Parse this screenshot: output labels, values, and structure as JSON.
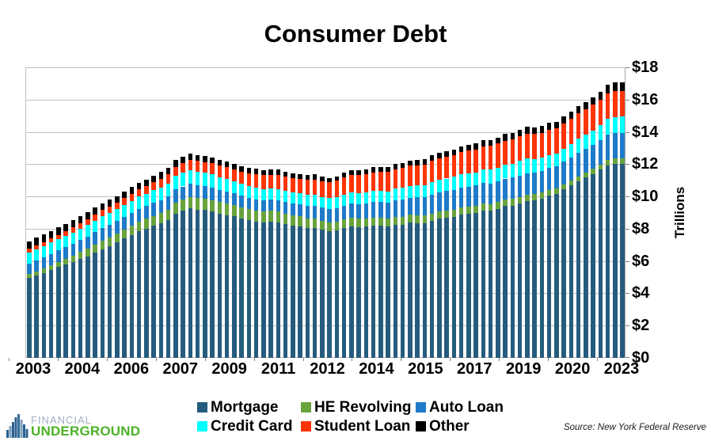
{
  "title": "Consumer Debt",
  "y_axis": {
    "title": "Trillions",
    "step": 2,
    "ticks": [
      "$0",
      "$2",
      "$4",
      "$6",
      "$8",
      "$10",
      "$12",
      "$14",
      "$16",
      "$18"
    ]
  },
  "x_axis": {
    "shown_tick_labels": [
      "2003",
      "2004",
      "2006",
      "2007",
      "2009",
      "2011",
      "2012",
      "2014",
      "2015",
      "2017",
      "2019",
      "2020",
      "2023"
    ]
  },
  "legend": {
    "labels": [
      "Mortgage",
      "HE Revolving",
      "Auto Loan",
      "Credit Card",
      "Student Loan",
      "Other"
    ]
  },
  "logo": {
    "line1": "FINANCIAL",
    "line2": "UNDERGROUND"
  },
  "source": "Source: New York Federal Reserve",
  "colors": {
    "mortgage": "#255c7e",
    "he_revolving": "#69a33c",
    "auto_loan": "#1e7bc9",
    "credit_card": "#00ffff",
    "student_loan": "#ff3505",
    "other": "#000000",
    "gridline": "#bfbfbf"
  },
  "chart_data": {
    "type": "bar",
    "stacked": true,
    "unit": "trillions USD",
    "ylim": [
      0,
      18
    ],
    "grid": true,
    "legend_position": "bottom",
    "categories": [
      "2003 Q1",
      "2003 Q2",
      "2003 Q3",
      "2003 Q4",
      "2004 Q1",
      "2004 Q2",
      "2004 Q3",
      "2004 Q4",
      "2005 Q1",
      "2005 Q2",
      "2005 Q3",
      "2005 Q4",
      "2006 Q1",
      "2006 Q2",
      "2006 Q3",
      "2006 Q4",
      "2007 Q1",
      "2007 Q2",
      "2007 Q3",
      "2007 Q4",
      "2008 Q1",
      "2008 Q2",
      "2008 Q3",
      "2008 Q4",
      "2009 Q1",
      "2009 Q2",
      "2009 Q3",
      "2009 Q4",
      "2010 Q1",
      "2010 Q2",
      "2010 Q3",
      "2010 Q4",
      "2011 Q1",
      "2011 Q2",
      "2011 Q3",
      "2011 Q4",
      "2012 Q1",
      "2012 Q2",
      "2012 Q3",
      "2012 Q4",
      "2013 Q1",
      "2013 Q2",
      "2013 Q3",
      "2013 Q4",
      "2014 Q1",
      "2014 Q2",
      "2014 Q3",
      "2014 Q4",
      "2015 Q1",
      "2015 Q2",
      "2015 Q3",
      "2015 Q4",
      "2016 Q1",
      "2016 Q2",
      "2016 Q3",
      "2016 Q4",
      "2017 Q1",
      "2017 Q2",
      "2017 Q3",
      "2017 Q4",
      "2018 Q1",
      "2018 Q2",
      "2018 Q3",
      "2018 Q4",
      "2019 Q1",
      "2019 Q2",
      "2019 Q3",
      "2019 Q4",
      "2020 Q1",
      "2020 Q2",
      "2020 Q3",
      "2020 Q4",
      "2021 Q1",
      "2021 Q2",
      "2021 Q3",
      "2021 Q4",
      "2022 Q1",
      "2022 Q2",
      "2022 Q3",
      "2022 Q4",
      "2023 Q1",
      "2023 Q2"
    ],
    "series": [
      {
        "name": "Mortgage",
        "color": "#255c7e",
        "values": [
          4.94,
          5.1,
          5.27,
          5.45,
          5.62,
          5.78,
          5.94,
          6.12,
          6.3,
          6.52,
          6.72,
          6.94,
          7.14,
          7.39,
          7.61,
          7.83,
          8.0,
          8.17,
          8.33,
          8.52,
          8.95,
          9.13,
          9.29,
          9.19,
          9.15,
          9.06,
          8.94,
          8.85,
          8.77,
          8.65,
          8.53,
          8.45,
          8.4,
          8.44,
          8.4,
          8.29,
          8.19,
          8.15,
          8.03,
          8.03,
          7.93,
          7.84,
          7.89,
          8.05,
          8.16,
          8.1,
          8.13,
          8.17,
          8.17,
          8.12,
          8.26,
          8.25,
          8.37,
          8.36,
          8.35,
          8.48,
          8.63,
          8.69,
          8.74,
          8.88,
          8.94,
          9.0,
          9.14,
          9.12,
          9.24,
          9.41,
          9.44,
          9.56,
          9.71,
          9.78,
          9.86,
          10.04,
          10.16,
          10.44,
          10.67,
          10.93,
          11.18,
          11.39,
          11.67,
          11.92,
          12.04,
          12.01
        ]
      },
      {
        "name": "HE Revolving",
        "color": "#69a33c",
        "values": [
          0.24,
          0.26,
          0.28,
          0.3,
          0.33,
          0.36,
          0.39,
          0.44,
          0.47,
          0.5,
          0.52,
          0.54,
          0.56,
          0.57,
          0.58,
          0.6,
          0.61,
          0.62,
          0.63,
          0.65,
          0.67,
          0.68,
          0.69,
          0.7,
          0.71,
          0.71,
          0.7,
          0.7,
          0.69,
          0.68,
          0.67,
          0.67,
          0.66,
          0.66,
          0.65,
          0.64,
          0.63,
          0.62,
          0.61,
          0.6,
          0.58,
          0.57,
          0.55,
          0.53,
          0.53,
          0.52,
          0.51,
          0.51,
          0.51,
          0.5,
          0.49,
          0.49,
          0.49,
          0.48,
          0.47,
          0.47,
          0.46,
          0.45,
          0.45,
          0.44,
          0.44,
          0.43,
          0.42,
          0.41,
          0.41,
          0.4,
          0.4,
          0.39,
          0.39,
          0.38,
          0.37,
          0.35,
          0.35,
          0.32,
          0.32,
          0.32,
          0.32,
          0.32,
          0.32,
          0.34,
          0.34,
          0.34
        ]
      },
      {
        "name": "Auto Loan",
        "color": "#1e7bc9",
        "values": [
          0.64,
          0.66,
          0.69,
          0.7,
          0.71,
          0.72,
          0.73,
          0.73,
          0.74,
          0.76,
          0.79,
          0.78,
          0.78,
          0.79,
          0.8,
          0.81,
          0.81,
          0.82,
          0.82,
          0.82,
          0.82,
          0.81,
          0.81,
          0.79,
          0.77,
          0.76,
          0.75,
          0.74,
          0.72,
          0.71,
          0.71,
          0.71,
          0.71,
          0.71,
          0.72,
          0.73,
          0.74,
          0.75,
          0.77,
          0.78,
          0.79,
          0.81,
          0.83,
          0.86,
          0.88,
          0.91,
          0.93,
          0.96,
          0.97,
          1.0,
          1.03,
          1.06,
          1.07,
          1.1,
          1.14,
          1.16,
          1.17,
          1.19,
          1.21,
          1.22,
          1.23,
          1.24,
          1.27,
          1.27,
          1.28,
          1.3,
          1.32,
          1.33,
          1.35,
          1.34,
          1.36,
          1.37,
          1.38,
          1.42,
          1.44,
          1.46,
          1.47,
          1.5,
          1.52,
          1.55,
          1.56,
          1.58
        ]
      },
      {
        "name": "Credit Card",
        "color": "#00ffff",
        "values": [
          0.69,
          0.69,
          0.69,
          0.7,
          0.7,
          0.7,
          0.71,
          0.72,
          0.71,
          0.72,
          0.73,
          0.73,
          0.72,
          0.73,
          0.74,
          0.75,
          0.75,
          0.77,
          0.79,
          0.82,
          0.82,
          0.84,
          0.85,
          0.87,
          0.84,
          0.83,
          0.81,
          0.81,
          0.76,
          0.74,
          0.73,
          0.73,
          0.7,
          0.69,
          0.69,
          0.7,
          0.68,
          0.67,
          0.67,
          0.68,
          0.66,
          0.67,
          0.67,
          0.68,
          0.66,
          0.67,
          0.68,
          0.7,
          0.68,
          0.7,
          0.71,
          0.73,
          0.71,
          0.73,
          0.75,
          0.78,
          0.76,
          0.78,
          0.81,
          0.83,
          0.82,
          0.83,
          0.84,
          0.87,
          0.85,
          0.87,
          0.88,
          0.93,
          0.89,
          0.82,
          0.81,
          0.82,
          0.77,
          0.79,
          0.8,
          0.86,
          0.84,
          0.89,
          0.93,
          0.99,
          0.99,
          1.03
        ]
      },
      {
        "name": "Student Loan",
        "color": "#ff3505",
        "values": [
          0.24,
          0.25,
          0.25,
          0.26,
          0.26,
          0.28,
          0.33,
          0.35,
          0.36,
          0.39,
          0.39,
          0.39,
          0.41,
          0.43,
          0.44,
          0.45,
          0.48,
          0.5,
          0.53,
          0.55,
          0.57,
          0.59,
          0.61,
          0.64,
          0.66,
          0.69,
          0.71,
          0.72,
          0.75,
          0.77,
          0.79,
          0.81,
          0.84,
          0.85,
          0.87,
          0.87,
          0.9,
          0.91,
          0.94,
          0.97,
          0.99,
          1.01,
          1.03,
          1.08,
          1.11,
          1.12,
          1.13,
          1.16,
          1.19,
          1.19,
          1.2,
          1.23,
          1.26,
          1.26,
          1.28,
          1.31,
          1.34,
          1.34,
          1.36,
          1.38,
          1.41,
          1.41,
          1.44,
          1.46,
          1.49,
          1.48,
          1.5,
          1.51,
          1.54,
          1.54,
          1.55,
          1.56,
          1.58,
          1.57,
          1.58,
          1.58,
          1.59,
          1.59,
          1.57,
          1.6,
          1.6,
          1.57
        ]
      },
      {
        "name": "Other",
        "color": "#000000",
        "values": [
          0.48,
          0.49,
          0.48,
          0.45,
          0.45,
          0.45,
          0.45,
          0.43,
          0.43,
          0.42,
          0.42,
          0.41,
          0.41,
          0.41,
          0.41,
          0.4,
          0.4,
          0.4,
          0.41,
          0.41,
          0.41,
          0.4,
          0.39,
          0.39,
          0.37,
          0.37,
          0.36,
          0.35,
          0.34,
          0.33,
          0.33,
          0.33,
          0.32,
          0.32,
          0.32,
          0.31,
          0.3,
          0.29,
          0.29,
          0.3,
          0.29,
          0.25,
          0.26,
          0.27,
          0.28,
          0.29,
          0.3,
          0.31,
          0.3,
          0.31,
          0.31,
          0.32,
          0.32,
          0.32,
          0.33,
          0.34,
          0.33,
          0.34,
          0.35,
          0.36,
          0.36,
          0.37,
          0.38,
          0.38,
          0.39,
          0.4,
          0.4,
          0.41,
          0.42,
          0.4,
          0.4,
          0.42,
          0.4,
          0.42,
          0.43,
          0.44,
          0.44,
          0.47,
          0.49,
          0.51,
          0.52,
          0.53
        ]
      }
    ]
  }
}
